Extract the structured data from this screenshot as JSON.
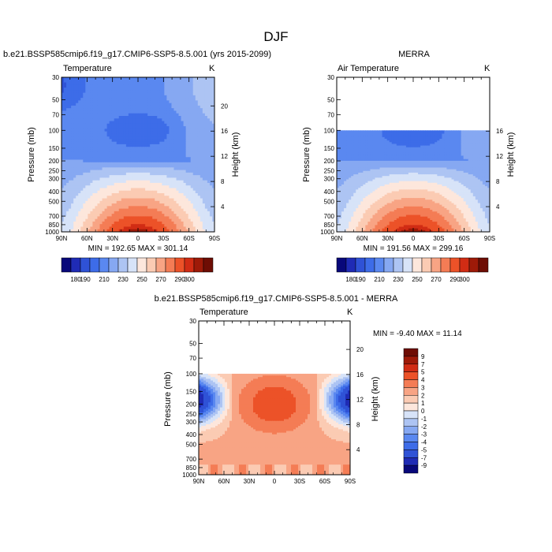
{
  "figure": {
    "title": "DJF"
  },
  "chart_data": [
    {
      "type": "heatmap",
      "panel": "model",
      "header": "b.e21.BSSP585cmip6.f19_g17.CMIP6-SSP5-8.5.001 (yrs 2015-2099)",
      "subtitle": "Temperature",
      "units": "K",
      "xlabel": "",
      "ylabel": "Pressure (mb)",
      "ylabel_right": "Height (km)",
      "x_ticks": [
        "90N",
        "60N",
        "30N",
        "0",
        "30S",
        "60S",
        "90S"
      ],
      "y_ticks": [
        "30",
        "50",
        "70",
        "100",
        "150",
        "200",
        "250",
        "300",
        "400",
        "500",
        "700",
        "850",
        "1000"
      ],
      "y_ticks_right": [
        "20",
        "16",
        "12",
        "8",
        "4"
      ],
      "ylim": [
        1000,
        30
      ],
      "data_top_mb": 30,
      "min": 192.65,
      "max": 301.14,
      "stats_text": "MIN = 192.65   MAX = 301.14",
      "colorbar_labels": [
        "180",
        "190",
        "200",
        "210",
        "220",
        "230",
        "240",
        "250",
        "260",
        "270",
        "280",
        "290",
        "300"
      ]
    },
    {
      "type": "heatmap",
      "panel": "reanalysis",
      "header": "MERRA",
      "subtitle": "Air Temperature",
      "units": "K",
      "xlabel": "",
      "ylabel": "Pressure (mb)",
      "ylabel_right": "Height (km)",
      "x_ticks": [
        "90N",
        "60N",
        "30N",
        "0",
        "30S",
        "60S",
        "90S"
      ],
      "y_ticks": [
        "30",
        "50",
        "70",
        "100",
        "150",
        "200",
        "250",
        "300",
        "400",
        "500",
        "700",
        "850",
        "1000"
      ],
      "y_ticks_right": [
        "16",
        "12",
        "8",
        "4"
      ],
      "ylim": [
        1000,
        30
      ],
      "data_top_mb": 100,
      "min": 191.56,
      "max": 299.16,
      "stats_text": "MIN = 191.56   MAX = 299.16",
      "colorbar_labels": [
        "180",
        "190",
        "200",
        "210",
        "220",
        "230",
        "240",
        "250",
        "260",
        "270",
        "280",
        "290",
        "300"
      ]
    },
    {
      "type": "heatmap",
      "panel": "difference",
      "header": "b.e21.BSSP585cmip6.f19_g17.CMIP6-SSP5-8.5.001 - MERRA",
      "subtitle": "Temperature",
      "units": "K",
      "xlabel": "",
      "ylabel": "Pressure (mb)",
      "ylabel_right": "Height (km)",
      "x_ticks": [
        "90N",
        "60N",
        "30N",
        "0",
        "30S",
        "60S",
        "90S"
      ],
      "y_ticks": [
        "30",
        "50",
        "70",
        "100",
        "150",
        "200",
        "250",
        "300",
        "400",
        "500",
        "700",
        "850",
        "1000"
      ],
      "y_ticks_right": [
        "20",
        "16",
        "12",
        "8",
        "4"
      ],
      "ylim": [
        1000,
        30
      ],
      "data_top_mb": 100,
      "min": -9.4,
      "max": 11.14,
      "stats_text": "MIN =  -9.40   MAX =  11.14",
      "colorbar_labels": [
        "9",
        "7",
        "5",
        "4",
        "3",
        "2",
        "1",
        "0",
        "-1",
        "-2",
        "-3",
        "-4",
        "-5",
        "-7",
        "-9"
      ]
    }
  ],
  "palettes": {
    "temperature": [
      "#08087a",
      "#1f2bb5",
      "#2f52d6",
      "#3d6ce8",
      "#5a88f0",
      "#86a8f2",
      "#adc4f3",
      "#d7e3f8",
      "#fde7dc",
      "#fbcbb3",
      "#f8a484",
      "#f47c55",
      "#ec5228",
      "#d12c14",
      "#9e1a08",
      "#6e0d04"
    ],
    "difference": [
      "#6e0d04",
      "#9e1a08",
      "#d12c14",
      "#ec5228",
      "#f47c55",
      "#f8a484",
      "#fbcbb3",
      "#fde7dc",
      "#d7e3f8",
      "#adc4f3",
      "#86a8f2",
      "#5a88f0",
      "#3d6ce8",
      "#2f52d6",
      "#1f2bb5",
      "#08087a"
    ]
  }
}
